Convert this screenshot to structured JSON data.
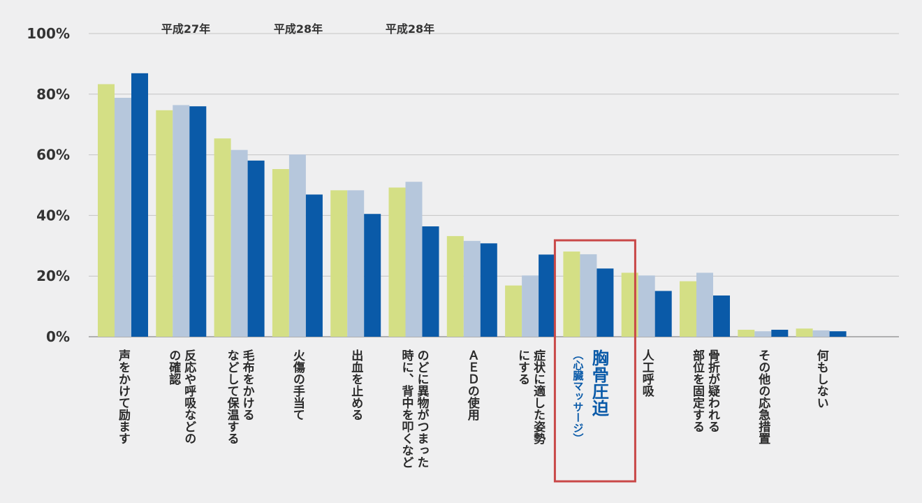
{
  "chart_data": {
    "type": "bar",
    "title": "",
    "xlabel": "",
    "ylabel": "",
    "ylim": [
      0,
      100
    ],
    "yticks": [
      "0%",
      "20%",
      "40%",
      "60%",
      "80%",
      "100%"
    ],
    "grid": true,
    "legend_placement": "top",
    "categories": [
      {
        "lines": [
          "声をかけて励ます"
        ]
      },
      {
        "lines": [
          "反応や呼吸などの",
          "の確認"
        ]
      },
      {
        "lines": [
          "毛布をかける",
          "などして保温する"
        ]
      },
      {
        "lines": [
          "火傷の手当て"
        ]
      },
      {
        "lines": [
          "出血を止める"
        ]
      },
      {
        "lines": [
          "のどに異物がつまった",
          "時に、背中を叩くなど"
        ]
      },
      {
        "lines": [
          "ＡＥＤの使用"
        ]
      },
      {
        "lines": [
          "症状に適した姿勢",
          "にする"
        ]
      },
      {
        "lines": [
          "胸骨圧迫",
          "（心臓マッサージ）"
        ],
        "highlight": true
      },
      {
        "lines": [
          "人工呼吸"
        ]
      },
      {
        "lines": [
          "骨折が疑われる",
          "部位を固定する"
        ]
      },
      {
        "lines": [
          "その他の応急措置"
        ]
      },
      {
        "lines": [
          "何もしない"
        ]
      }
    ],
    "series": [
      {
        "name": "平成27年",
        "color": "#d4df85",
        "values": [
          83.3,
          74.7,
          65.4,
          55.3,
          48.3,
          49.2,
          33.2,
          16.9,
          28.1,
          21.1,
          18.3,
          2.3,
          2.7
        ]
      },
      {
        "name": "平成28年",
        "color": "#b6c7dc",
        "values": [
          78.8,
          76.4,
          61.6,
          60.1,
          48.3,
          51.1,
          31.6,
          20.2,
          27.2,
          20.2,
          21.1,
          1.8,
          2.1
        ]
      },
      {
        "name": "平成28年",
        "color": "#0a5aa8",
        "values": [
          86.9,
          76.0,
          58.1,
          46.9,
          40.5,
          36.4,
          30.8,
          27.1,
          22.5,
          15.1,
          13.6,
          2.3,
          1.8
        ]
      }
    ],
    "highlight_box_color": "#c94848"
  }
}
